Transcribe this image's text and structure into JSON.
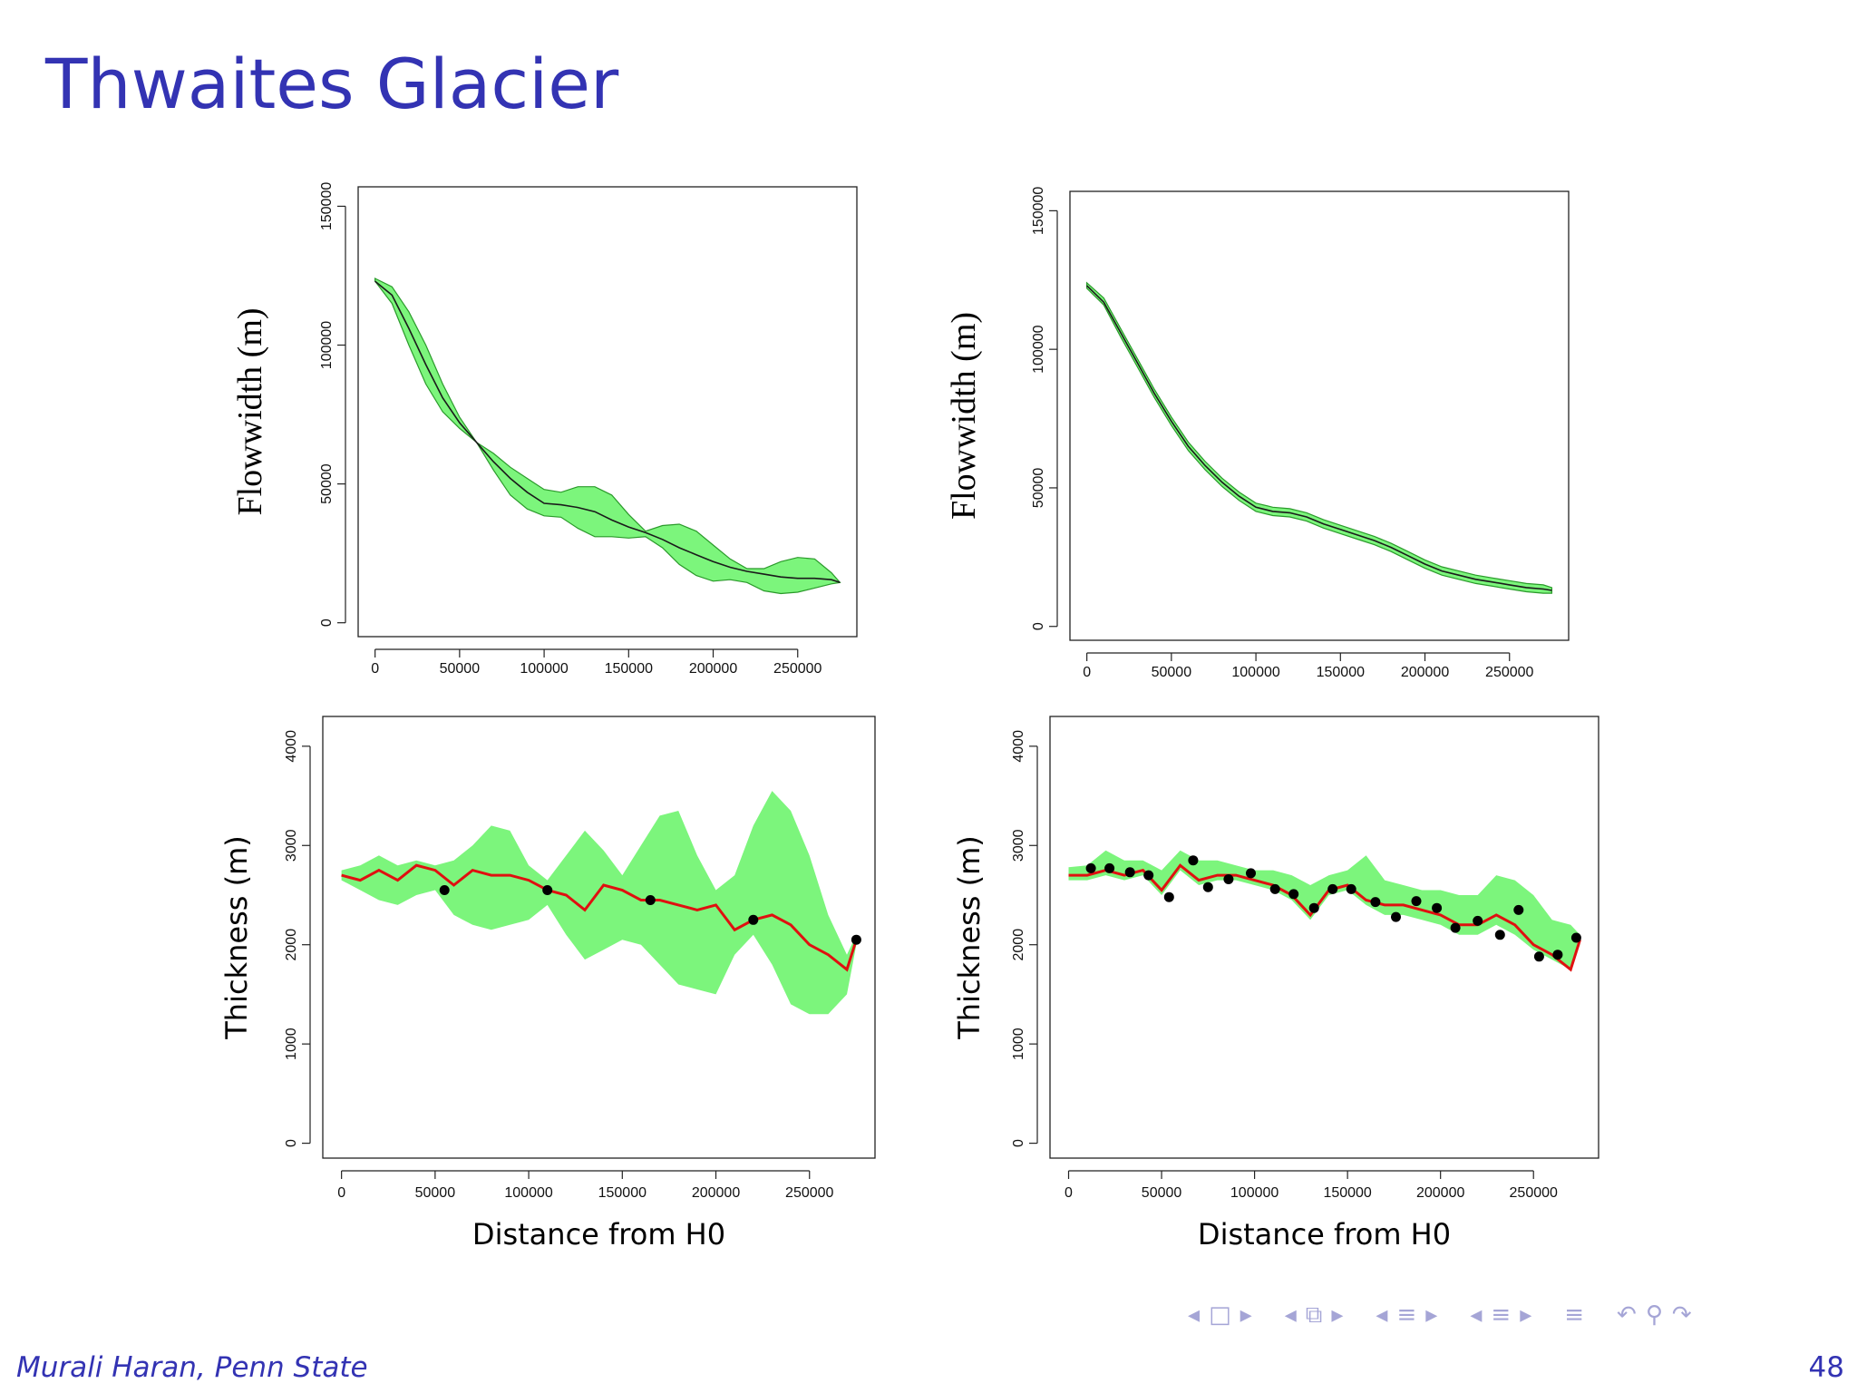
{
  "title": "Thwaites Glacier",
  "footer": {
    "author": "Murali Haran, Penn State",
    "page": "48"
  },
  "nav": {
    "icons": [
      "nav-left-arrow-icon",
      "frame-icon",
      "nav-right-arrow-icon",
      "nav-left-arrow-icon",
      "frames-stack-icon",
      "nav-right-arrow-icon",
      "nav-left-arrow-icon",
      "section-icon",
      "nav-right-arrow-icon",
      "nav-left-arrow-icon",
      "subsection-icon",
      "nav-right-arrow-icon",
      "toc-icon",
      "undo-icon",
      "search-icon",
      "redo-icon"
    ],
    "glyphs": {
      "left": "◂",
      "frame": "□",
      "frames": "⧉",
      "right": "▸",
      "section": "≡",
      "toc": "≡",
      "undo": "↶",
      "search": "⚲",
      "redo": "↷"
    }
  },
  "colors": {
    "band": "#7cf57c",
    "band_edge": "#2a9a2a",
    "mean": "#1a1a1a",
    "red": "#e01010",
    "points": "#000000",
    "title": "#3333b3"
  },
  "chart_data": [
    {
      "type": "area",
      "ylabel": "Flowwidth (m)",
      "xlabel": "",
      "xlim": [
        -10000,
        285000
      ],
      "ylim": [
        -5000,
        157000
      ],
      "xticks": [
        0,
        50000,
        100000,
        150000,
        200000,
        250000
      ],
      "yticks": [
        0,
        50000,
        100000,
        150000
      ],
      "x": [
        0,
        10000,
        20000,
        30000,
        40000,
        50000,
        60000,
        70000,
        80000,
        90000,
        100000,
        110000,
        120000,
        130000,
        140000,
        150000,
        160000,
        170000,
        180000,
        190000,
        200000,
        210000,
        220000,
        230000,
        240000,
        250000,
        260000,
        270000,
        275000
      ],
      "mean": [
        123000,
        118000,
        106000,
        93000,
        81000,
        72000,
        65000,
        58000,
        52000,
        47000,
        43000,
        42500,
        41500,
        40000,
        37000,
        34500,
        32500,
        30000,
        27000,
        24500,
        22000,
        20000,
        18500,
        17500,
        16500,
        16000,
        16000,
        15500,
        14500
      ],
      "lower": [
        123000,
        115000,
        100000,
        86000,
        76000,
        70000,
        65000,
        55000,
        46000,
        41000,
        38500,
        38000,
        34000,
        31000,
        31000,
        30500,
        31000,
        27000,
        21000,
        17000,
        15000,
        15500,
        14500,
        11500,
        10500,
        11000,
        12500,
        14000,
        14500
      ],
      "upper": [
        124000,
        121000,
        112000,
        100000,
        86000,
        74000,
        65000,
        61000,
        56000,
        52000,
        48000,
        47000,
        49000,
        49000,
        46000,
        39000,
        33000,
        35000,
        35500,
        33000,
        28000,
        23000,
        19500,
        19500,
        22000,
        23500,
        23000,
        18000,
        14500
      ]
    },
    {
      "type": "area",
      "ylabel": "Flowwidth (m)",
      "xlabel": "",
      "xlim": [
        -10000,
        285000
      ],
      "ylim": [
        -5000,
        157000
      ],
      "xticks": [
        0,
        50000,
        100000,
        150000,
        200000,
        250000
      ],
      "yticks": [
        0,
        50000,
        100000,
        150000
      ],
      "x": [
        0,
        10000,
        20000,
        30000,
        40000,
        50000,
        60000,
        70000,
        80000,
        90000,
        100000,
        110000,
        120000,
        130000,
        140000,
        150000,
        160000,
        170000,
        180000,
        190000,
        200000,
        210000,
        220000,
        230000,
        240000,
        250000,
        260000,
        270000,
        275000
      ],
      "mean": [
        123000,
        117000,
        106000,
        95000,
        84000,
        74000,
        65000,
        58000,
        52000,
        47000,
        43000,
        41500,
        41000,
        39500,
        37000,
        35000,
        33000,
        31000,
        28500,
        25500,
        22500,
        20000,
        18500,
        17000,
        16000,
        15000,
        14000,
        13500,
        13000
      ],
      "lower": [
        122000,
        116000,
        104500,
        93500,
        82500,
        72500,
        63500,
        56500,
        50500,
        45500,
        41500,
        40000,
        39500,
        38000,
        35500,
        33500,
        31500,
        29500,
        27000,
        24000,
        21000,
        18500,
        17000,
        15500,
        14500,
        13500,
        12500,
        12000,
        12000
      ],
      "upper": [
        124000,
        118500,
        107500,
        96500,
        85500,
        75500,
        66500,
        59500,
        53500,
        48500,
        44500,
        43000,
        42500,
        41000,
        38500,
        36500,
        34500,
        32500,
        30000,
        27000,
        24000,
        21500,
        20000,
        18500,
        17500,
        16500,
        15500,
        15000,
        14000
      ]
    },
    {
      "type": "area",
      "ylabel": "Thickness (m)",
      "xlabel": "Distance from H0",
      "xlim": [
        -10000,
        285000
      ],
      "ylim": [
        -150,
        4300
      ],
      "xticks": [
        0,
        50000,
        100000,
        150000,
        200000,
        250000
      ],
      "yticks": [
        0,
        1000,
        2000,
        3000,
        4000
      ],
      "x": [
        0,
        10000,
        20000,
        30000,
        40000,
        50000,
        60000,
        70000,
        80000,
        90000,
        100000,
        110000,
        120000,
        130000,
        140000,
        150000,
        160000,
        170000,
        180000,
        190000,
        200000,
        210000,
        220000,
        230000,
        240000,
        250000,
        260000,
        270000,
        275000
      ],
      "red": [
        2700,
        2650,
        2750,
        2650,
        2800,
        2750,
        2600,
        2750,
        2700,
        2700,
        2650,
        2550,
        2500,
        2350,
        2600,
        2550,
        2450,
        2450,
        2400,
        2350,
        2400,
        2150,
        2250,
        2300,
        2200,
        2000,
        1900,
        1750,
        2050
      ],
      "lower": [
        2650,
        2550,
        2450,
        2400,
        2500,
        2550,
        2300,
        2200,
        2150,
        2200,
        2250,
        2400,
        2100,
        1850,
        1950,
        2050,
        2000,
        1800,
        1600,
        1550,
        1500,
        1900,
        2100,
        1800,
        1400,
        1300,
        1300,
        1500,
        2000
      ],
      "upper": [
        2750,
        2800,
        2900,
        2800,
        2850,
        2800,
        2850,
        3000,
        3200,
        3150,
        2800,
        2650,
        2900,
        3150,
        2950,
        2700,
        3000,
        3300,
        3350,
        2900,
        2550,
        2700,
        3200,
        3550,
        3350,
        2900,
        2300,
        1900,
        2100
      ],
      "points": {
        "x": [
          55000,
          110000,
          165000,
          220000,
          275000
        ],
        "y": [
          2550,
          2550,
          2450,
          2250,
          2050
        ]
      }
    },
    {
      "type": "area",
      "ylabel": "Thickness (m)",
      "xlabel": "Distance from H0",
      "xlim": [
        -10000,
        285000
      ],
      "ylim": [
        -150,
        4300
      ],
      "xticks": [
        0,
        50000,
        100000,
        150000,
        200000,
        250000
      ],
      "yticks": [
        0,
        1000,
        2000,
        3000,
        4000
      ],
      "x": [
        0,
        10000,
        20000,
        30000,
        40000,
        50000,
        60000,
        70000,
        80000,
        90000,
        100000,
        110000,
        120000,
        130000,
        140000,
        150000,
        160000,
        170000,
        180000,
        190000,
        200000,
        210000,
        220000,
        230000,
        240000,
        250000,
        260000,
        270000,
        275000
      ],
      "red": [
        2700,
        2700,
        2750,
        2700,
        2750,
        2550,
        2800,
        2650,
        2700,
        2700,
        2650,
        2600,
        2500,
        2300,
        2550,
        2600,
        2450,
        2400,
        2400,
        2350,
        2300,
        2200,
        2200,
        2300,
        2200,
        2000,
        1900,
        1750,
        2050
      ],
      "lower": [
        2650,
        2650,
        2700,
        2650,
        2700,
        2500,
        2750,
        2600,
        2650,
        2650,
        2600,
        2550,
        2450,
        2250,
        2500,
        2550,
        2400,
        2300,
        2300,
        2250,
        2200,
        2100,
        2100,
        2200,
        2100,
        1950,
        1850,
        1750,
        2000
      ],
      "upper": [
        2780,
        2800,
        2950,
        2850,
        2850,
        2750,
        2950,
        2850,
        2850,
        2800,
        2750,
        2750,
        2700,
        2600,
        2700,
        2750,
        2900,
        2650,
        2600,
        2550,
        2550,
        2500,
        2500,
        2700,
        2650,
        2500,
        2250,
        2200,
        2100
      ],
      "points": {
        "x": [
          12000,
          22000,
          33000,
          43000,
          54000,
          67000,
          75000,
          86000,
          98000,
          111000,
          121000,
          132000,
          142000,
          152000,
          165000,
          176000,
          187000,
          198000,
          208000,
          220000,
          232000,
          242000,
          253000,
          263000,
          273000
        ],
        "y": [
          2770,
          2770,
          2730,
          2700,
          2480,
          2850,
          2580,
          2660,
          2720,
          2560,
          2510,
          2370,
          2560,
          2560,
          2430,
          2280,
          2440,
          2370,
          2170,
          2240,
          2100,
          2350,
          1880,
          1900,
          2070
        ]
      }
    }
  ]
}
